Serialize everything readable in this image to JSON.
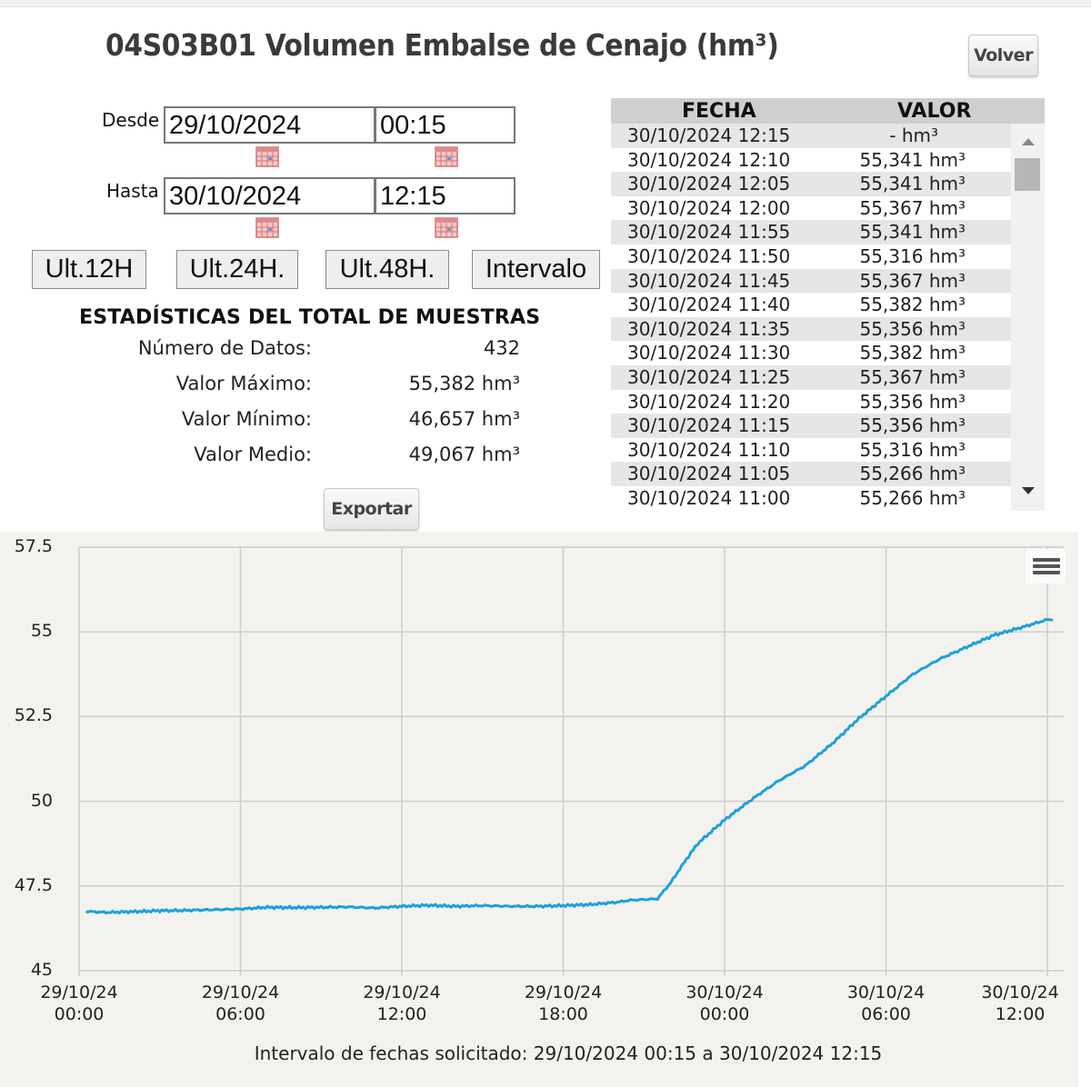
{
  "header": {
    "title": "04S03B01 Volumen Embalse de Cenajo (hm³)",
    "back_button": "Volver"
  },
  "filters": {
    "desde_label": "Desde",
    "desde_date": "29/10/2024",
    "desde_time": "00:15",
    "hasta_label": "Hasta",
    "hasta_date": "30/10/2024",
    "hasta_time": "12:15",
    "calendar_icon": "calendar-icon",
    "quick_buttons": [
      "Ult.12H",
      "Ult.24H.",
      "Ult.48H.",
      "Intervalo"
    ]
  },
  "stats": {
    "title": "ESTADÍSTICAS DEL TOTAL DE MUESTRAS",
    "items": [
      {
        "label": "Número de Datos:",
        "value": "432"
      },
      {
        "label": "Valor Máximo:",
        "value": "55,382 hm³"
      },
      {
        "label": "Valor Mínimo:",
        "value": "46,657 hm³"
      },
      {
        "label": "Valor Medio:",
        "value": "49,067 hm³"
      }
    ],
    "export_button": "Exportar"
  },
  "table": {
    "headers": [
      "FECHA",
      "VALOR"
    ],
    "rows": [
      {
        "fecha": "30/10/2024 12:15",
        "valor": "- hm³"
      },
      {
        "fecha": "30/10/2024 12:10",
        "valor": "55,341 hm³"
      },
      {
        "fecha": "30/10/2024 12:05",
        "valor": "55,341 hm³"
      },
      {
        "fecha": "30/10/2024 12:00",
        "valor": "55,367 hm³"
      },
      {
        "fecha": "30/10/2024 11:55",
        "valor": "55,341 hm³"
      },
      {
        "fecha": "30/10/2024 11:50",
        "valor": "55,316 hm³"
      },
      {
        "fecha": "30/10/2024 11:45",
        "valor": "55,367 hm³"
      },
      {
        "fecha": "30/10/2024 11:40",
        "valor": "55,382 hm³"
      },
      {
        "fecha": "30/10/2024 11:35",
        "valor": "55,356 hm³"
      },
      {
        "fecha": "30/10/2024 11:30",
        "valor": "55,382 hm³"
      },
      {
        "fecha": "30/10/2024 11:25",
        "valor": "55,367 hm³"
      },
      {
        "fecha": "30/10/2024 11:20",
        "valor": "55,356 hm³"
      },
      {
        "fecha": "30/10/2024 11:15",
        "valor": "55,356 hm³"
      },
      {
        "fecha": "30/10/2024 11:10",
        "valor": "55,316 hm³"
      },
      {
        "fecha": "30/10/2024 11:05",
        "valor": "55,266 hm³"
      },
      {
        "fecha": "30/10/2024 11:00",
        "valor": "55,266 hm³"
      }
    ]
  },
  "chart_footer": "Intervalo de fechas solicitado: 29/10/2024 00:15 a 30/10/2024 12:15",
  "chart_data": {
    "type": "line",
    "title": "",
    "xlabel": "",
    "ylabel": "",
    "ylim": [
      45,
      57.5
    ],
    "yticks": [
      "57.5",
      "55",
      "52.5",
      "50",
      "47.5",
      "45"
    ],
    "xticks": [
      {
        "date": "29/10/24",
        "time": "00:00"
      },
      {
        "date": "29/10/24",
        "time": "06:00"
      },
      {
        "date": "29/10/24",
        "time": "12:00"
      },
      {
        "date": "29/10/24",
        "time": "18:00"
      },
      {
        "date": "30/10/24",
        "time": "00:00"
      },
      {
        "date": "30/10/24",
        "time": "06:00"
      },
      {
        "date": "30/10/24",
        "time": "12:00"
      }
    ],
    "grid": true,
    "legend": false,
    "series_color": "#1ba1d9",
    "series": [
      {
        "name": "Volumen (hm³)",
        "x_hours": [
          0.25,
          1,
          2,
          3,
          4,
          5,
          6,
          7,
          8,
          9,
          10,
          11,
          12,
          13,
          14,
          15,
          16,
          17,
          18,
          19,
          20,
          20.5,
          21,
          21.5,
          22,
          22.5,
          23,
          23.5,
          24,
          25,
          26,
          27,
          28,
          29,
          30,
          31,
          32,
          33,
          34,
          35,
          36,
          36.2
        ],
        "values": [
          46.75,
          46.72,
          46.74,
          46.77,
          46.78,
          46.8,
          46.82,
          46.87,
          46.86,
          46.87,
          46.88,
          46.85,
          46.9,
          46.93,
          46.9,
          46.92,
          46.9,
          46.9,
          46.92,
          46.95,
          47.02,
          47.08,
          47.1,
          47.12,
          47.6,
          48.2,
          48.75,
          49.1,
          49.45,
          50.05,
          50.6,
          51.05,
          51.7,
          52.45,
          53.1,
          53.75,
          54.2,
          54.55,
          54.9,
          55.12,
          55.36,
          55.34
        ]
      }
    ]
  },
  "chart_menu_icon": "hamburger-menu-icon"
}
